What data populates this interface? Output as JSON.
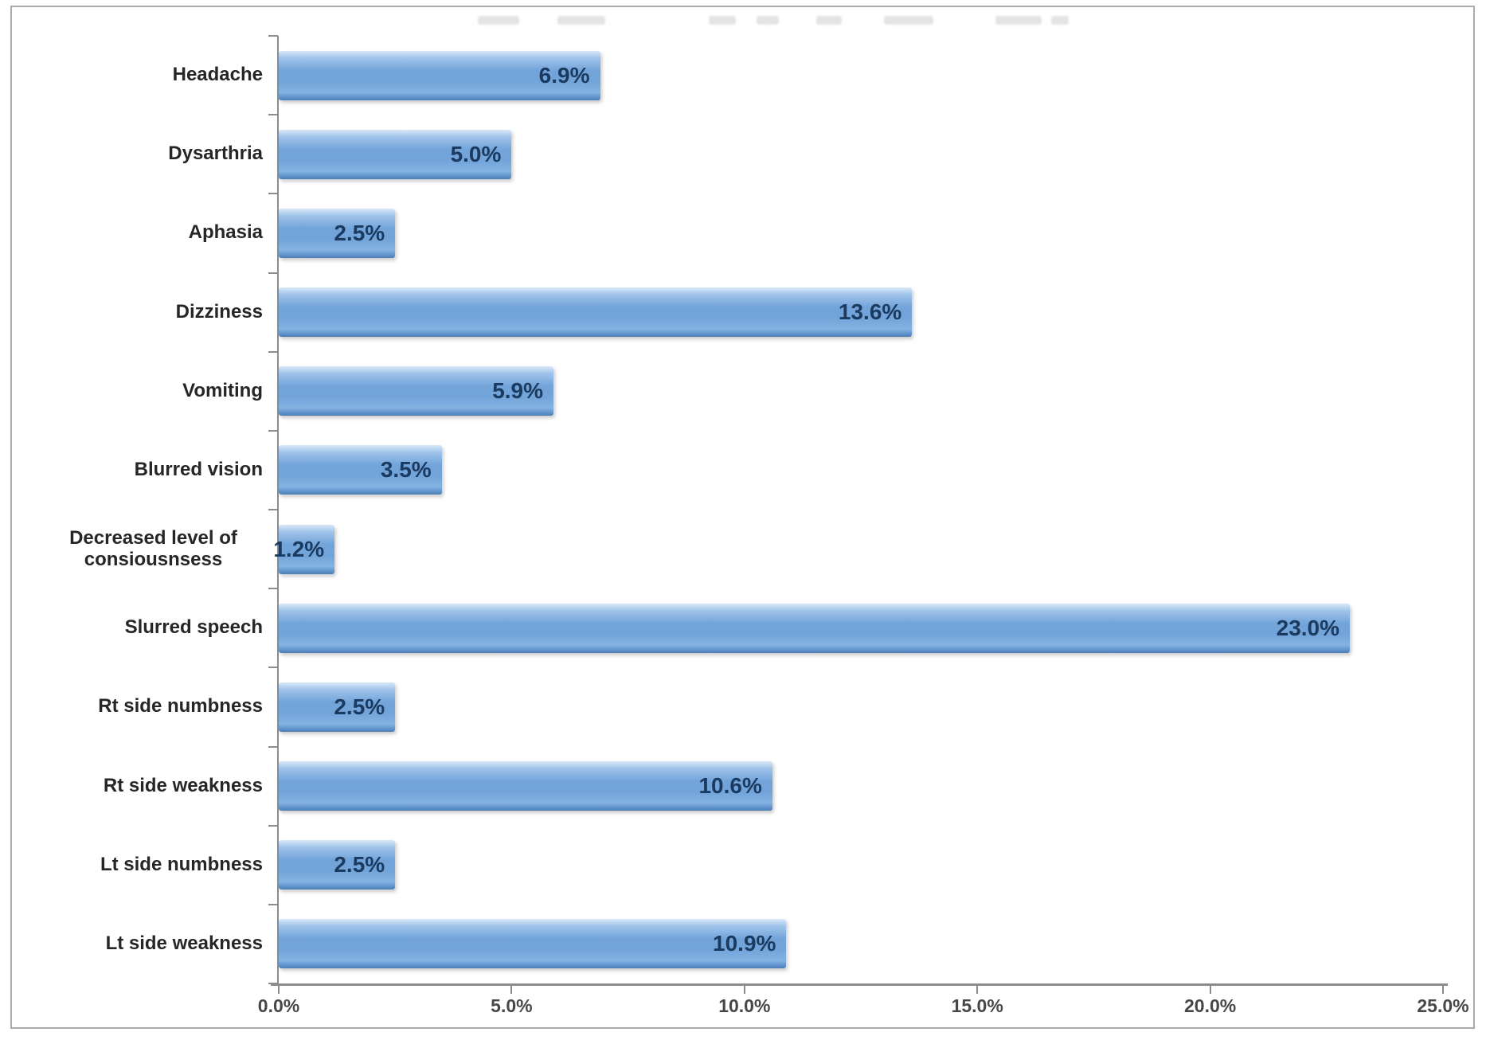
{
  "page": {
    "background": "#ffffff",
    "frame_border_color": "#ababab"
  },
  "chart_data": {
    "type": "bar",
    "orientation": "horizontal",
    "title": "",
    "xlabel": "",
    "ylabel": "",
    "grid": false,
    "legend": "none",
    "xlim": [
      0,
      25
    ],
    "x_ticks": [
      "0.0%",
      "5.0%",
      "10.0%",
      "15.0%",
      "20.0%",
      "25.0%"
    ],
    "categories": [
      "Headache",
      "Dysarthria",
      "Aphasia",
      "Dizziness",
      "Vomiting",
      "Blurred vision",
      "Decreased level of consiousnsess",
      "Slurred speech",
      "Rt side numbness",
      "Rt side weakness",
      "Lt side numbness",
      "Lt side weakness"
    ],
    "values": [
      6.9,
      5.0,
      2.5,
      13.6,
      5.9,
      3.5,
      1.2,
      23.0,
      2.5,
      10.6,
      2.5,
      10.9
    ],
    "value_labels": [
      "6.9%",
      "5.0%",
      "2.5%",
      "13.6%",
      "5.9%",
      "3.5%",
      "1.2%",
      "23.0%",
      "2.5%",
      "10.6%",
      "2.5%",
      "10.9%"
    ],
    "colors": {
      "bar-top": "#d8e7f7",
      "bar-mid": "#72a4da",
      "bar-bottom": "#4d7db6",
      "value-label": "#1b3a5f",
      "category-label": "#262626",
      "tick-label": "#474747",
      "axis-color": "#8c8c8c",
      "frame-border": "#ababab"
    }
  }
}
